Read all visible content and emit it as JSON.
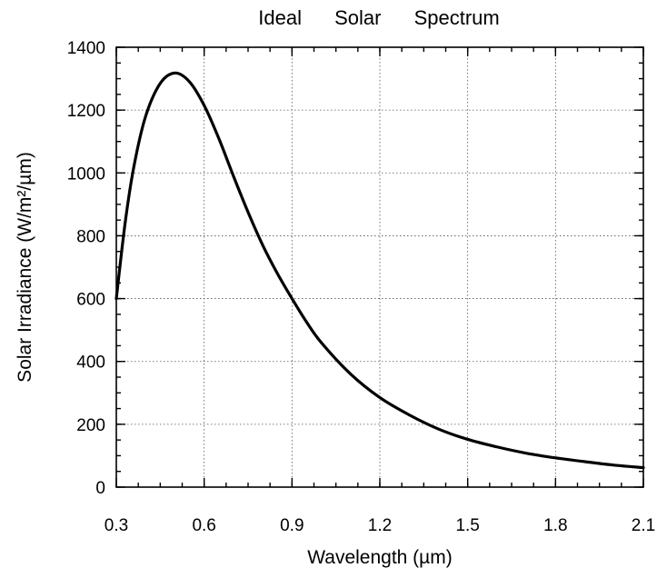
{
  "chart_data": {
    "type": "line",
    "title": "Ideal Solar Spectrum",
    "xlabel": "Wavelength (µm)",
    "ylabel": "Solar Irradiance (W/m²/µm)",
    "xlim": [
      0.3,
      2.1
    ],
    "ylim": [
      0,
      1400
    ],
    "xticks": [
      "0.3",
      "0.6",
      "0.9",
      "1.2",
      "1.5",
      "1.8",
      "2.1"
    ],
    "yticks": [
      "0",
      "200",
      "400",
      "600",
      "800",
      "1000",
      "1200",
      "1400"
    ],
    "grid": true,
    "series": [
      {
        "x": [
          0.3,
          0.33,
          0.36,
          0.4,
          0.45,
          0.5,
          0.55,
          0.6,
          0.65,
          0.7,
          0.75,
          0.8,
          0.85,
          0.9,
          0.95,
          1.0,
          1.1,
          1.2,
          1.3,
          1.4,
          1.5,
          1.6,
          1.7,
          1.8,
          1.9,
          2.0,
          2.1
        ],
        "values": [
          600,
          840,
          1020,
          1180,
          1285,
          1318,
          1290,
          1215,
          1110,
          990,
          875,
          770,
          680,
          600,
          525,
          460,
          360,
          285,
          230,
          185,
          152,
          128,
          108,
          93,
          81,
          70,
          62
        ]
      }
    ]
  }
}
